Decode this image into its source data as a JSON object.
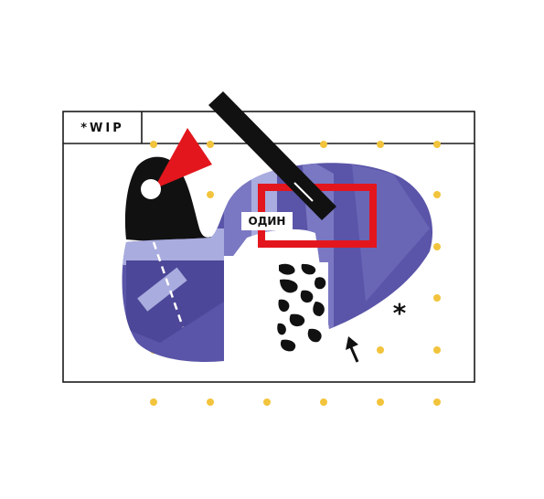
{
  "frame": {
    "tab_label": "*WIP"
  },
  "canvas": {
    "tag_label": "ОДИН",
    "asterisk": "*"
  },
  "icons": [
    "arrow-up-icon",
    "asterisk-icon",
    "red-triangle-shape",
    "black-bar-shape"
  ],
  "colors": {
    "background": "#ffffff",
    "frame_stroke": "#1a1a1a",
    "violet": "#5a55a8",
    "violet_light": "#7a78c2",
    "lavender": "#a9acde",
    "dots": "#f2c43d",
    "red": "#e3161d",
    "black": "#111111"
  }
}
